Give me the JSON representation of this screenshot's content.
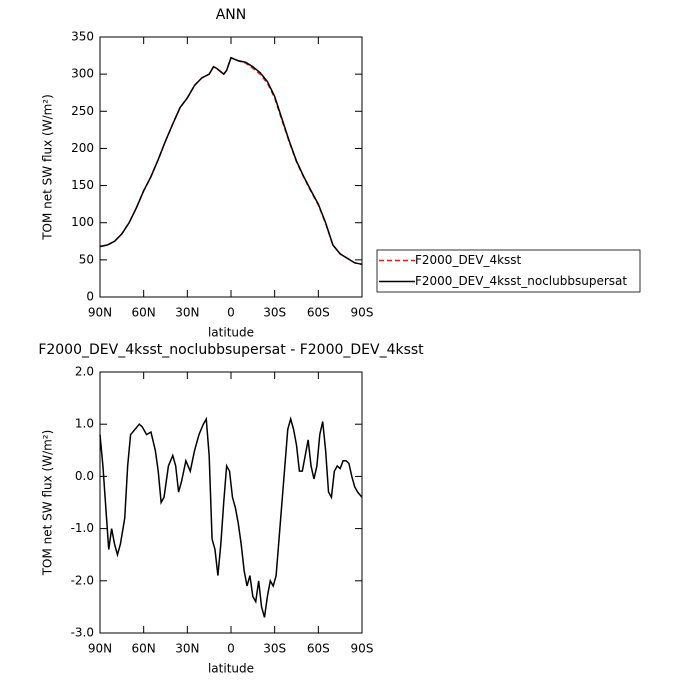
{
  "chart_data": [
    {
      "type": "line",
      "title": "ANN",
      "xlabel": "latitude",
      "ylabel": "TOM net SW flux (W/m²)",
      "xlim": [
        90,
        -90
      ],
      "ylim": [
        0,
        350
      ],
      "xticks": [
        {
          "value": 90,
          "label": "90N"
        },
        {
          "value": 60,
          "label": "60N"
        },
        {
          "value": 30,
          "label": "30N"
        },
        0,
        {
          "value": -30,
          "label": "30S"
        },
        {
          "value": -60,
          "label": "60S"
        },
        {
          "value": -90,
          "label": "90S"
        }
      ],
      "yticks": [
        0,
        50,
        100,
        150,
        200,
        250,
        300,
        350
      ],
      "legend": "right",
      "x": [
        90,
        85,
        80,
        75,
        70,
        65,
        60,
        55,
        50,
        45,
        40,
        35,
        30,
        25,
        20,
        15,
        12,
        10,
        5,
        3,
        0,
        -5,
        -10,
        -15,
        -20,
        -25,
        -30,
        -35,
        -40,
        -45,
        -50,
        -55,
        -60,
        -65,
        -70,
        -75,
        -80,
        -85,
        -90
      ],
      "series": [
        {
          "name": "F2000_DEV_4ksst",
          "color": "#e31a1c",
          "dash": true,
          "values": [
            68,
            70,
            75,
            85,
            100,
            120,
            143,
            162,
            185,
            210,
            233,
            255,
            268,
            285,
            295,
            300,
            310,
            308,
            300,
            305,
            322,
            318,
            315,
            308,
            300,
            288,
            268,
            238,
            209,
            182,
            161,
            142,
            124,
            99,
            70,
            58,
            52,
            46,
            44
          ]
        },
        {
          "name": "F2000_DEV_4ksst_noclubbsupersat",
          "color": "#000000",
          "dash": false,
          "values": [
            68,
            70,
            75,
            85,
            100,
            120,
            143,
            162,
            185,
            210,
            233,
            255,
            268,
            285,
            295,
            300,
            310,
            308,
            300,
            305,
            322,
            318,
            316,
            310,
            302,
            290,
            270,
            240,
            210,
            183,
            162,
            143,
            125,
            100,
            70,
            58,
            52,
            46,
            44
          ]
        }
      ]
    },
    {
      "type": "line",
      "title": "F2000_DEV_4ksst_noclubbsupersat - F2000_DEV_4ksst",
      "xlabel": "latitude",
      "ylabel": "TOM net SW flux (W/m²)",
      "xlim": [
        90,
        -90
      ],
      "ylim": [
        -3,
        2
      ],
      "xticks": [
        {
          "value": 90,
          "label": "90N"
        },
        {
          "value": 60,
          "label": "60N"
        },
        {
          "value": 30,
          "label": "30N"
        },
        0,
        {
          "value": -30,
          "label": "30S"
        },
        {
          "value": -60,
          "label": "60S"
        },
        {
          "value": -90,
          "label": "90S"
        }
      ],
      "yticks": [
        {
          "value": -3,
          "label": "-3.0"
        },
        {
          "value": -2,
          "label": "-2.0"
        },
        {
          "value": -1,
          "label": "-1.0"
        },
        {
          "value": 0,
          "label": "0.0"
        },
        {
          "value": 1,
          "label": "1.0"
        },
        {
          "value": 2,
          "label": "2.0"
        }
      ],
      "x": [
        90,
        88,
        86,
        84,
        82,
        80,
        78,
        76,
        73,
        71,
        69,
        66,
        63,
        61,
        58,
        55,
        52,
        50,
        48,
        46,
        43,
        40,
        38,
        36,
        34,
        31,
        28,
        25,
        22,
        19,
        17,
        15,
        13,
        11,
        9,
        7,
        5,
        3,
        1,
        -1,
        -3,
        -5,
        -7,
        -9,
        -11,
        -13,
        -15,
        -17,
        -19,
        -21,
        -23,
        -25,
        -27,
        -29,
        -31,
        -33,
        -35,
        -37,
        -39,
        -41,
        -43,
        -45,
        -47,
        -49,
        -51,
        -53,
        -55,
        -57,
        -59,
        -61,
        -63,
        -65,
        -67,
        -69,
        -71,
        -73,
        -75,
        -77,
        -79,
        -81,
        -83,
        -85,
        -87,
        -90
      ],
      "series": [
        {
          "color": "#000000",
          "dash": false,
          "values": [
            0.8,
            0.2,
            -0.6,
            -1.4,
            -1.0,
            -1.3,
            -1.5,
            -1.3,
            -0.8,
            0.2,
            0.8,
            0.9,
            1.0,
            0.95,
            0.8,
            0.85,
            0.5,
            0.1,
            -0.5,
            -0.4,
            0.2,
            0.4,
            0.2,
            -0.3,
            -0.1,
            0.3,
            0.1,
            0.5,
            0.8,
            1.0,
            1.1,
            0.4,
            -1.2,
            -1.4,
            -1.9,
            -1.3,
            -0.5,
            0.2,
            0.1,
            -0.4,
            -0.6,
            -0.9,
            -1.3,
            -1.8,
            -2.1,
            -1.9,
            -2.3,
            -2.4,
            -2.0,
            -2.5,
            -2.7,
            -2.3,
            -2.0,
            -2.1,
            -1.9,
            -1.2,
            -0.5,
            0.2,
            0.9,
            1.1,
            0.9,
            0.6,
            0.1,
            0.1,
            0.4,
            0.7,
            0.2,
            -0.05,
            0.2,
            0.8,
            1.05,
            0.5,
            -0.3,
            -0.4,
            0.1,
            0.2,
            0.15,
            0.3,
            0.3,
            0.25,
            0.0,
            -0.2,
            -0.3,
            -0.4
          ]
        }
      ]
    }
  ]
}
